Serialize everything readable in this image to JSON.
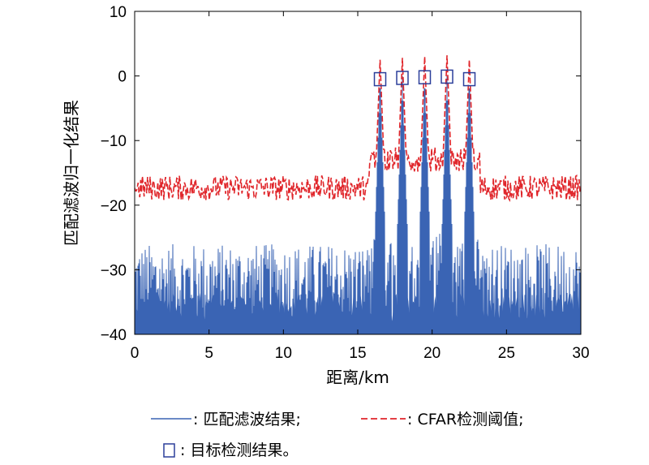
{
  "chart_data": {
    "type": "line",
    "xlabel": "距离/km",
    "ylabel": "匹配滤波归一化结果",
    "xlim": [
      0,
      30
    ],
    "ylim": [
      -40,
      10
    ],
    "xticks": [
      0,
      5,
      10,
      15,
      20,
      25,
      30
    ],
    "yticks": [
      10,
      0,
      -10,
      -20,
      -30,
      -40
    ],
    "xtick_labels": [
      "0",
      "5",
      "10",
      "15",
      "20",
      "25",
      "30"
    ],
    "ytick_labels": [
      "10",
      "0",
      "−10",
      "−20",
      "−30",
      "−40"
    ],
    "grid": false,
    "legend_position": "bottom",
    "series": [
      {
        "name": "匹配滤波结果;",
        "style": "solid",
        "color": "#3a64b4",
        "noise_floor_band": [
          -40,
          -26
        ],
        "peaks": [
          {
            "x": 16.5,
            "y": 0
          },
          {
            "x": 18.0,
            "y": 0
          },
          {
            "x": 19.5,
            "y": 0
          },
          {
            "x": 21.0,
            "y": 0
          },
          {
            "x": 22.5,
            "y": 0
          }
        ]
      },
      {
        "name": "CFAR检测阈值;",
        "style": "dashed",
        "color": "#e0262b",
        "baseline_band": [
          -21,
          -14
        ],
        "peaks": [
          {
            "x": 16.5,
            "y": 2.5
          },
          {
            "x": 18.0,
            "y": 2.8
          },
          {
            "x": 19.5,
            "y": 3.0
          },
          {
            "x": 21.0,
            "y": 3.2
          },
          {
            "x": 22.5,
            "y": 2.5
          }
        ]
      },
      {
        "name": "目标检测结果。",
        "style": "marker-square",
        "color": "#2b3f9a",
        "points": [
          {
            "x": 16.5,
            "y": -0.5
          },
          {
            "x": 18.0,
            "y": -0.3
          },
          {
            "x": 19.5,
            "y": -0.2
          },
          {
            "x": 21.0,
            "y": -0.1
          },
          {
            "x": 22.5,
            "y": -0.5
          }
        ]
      }
    ],
    "legend": {
      "matched_filter_label": ": 匹配滤波结果;",
      "cfar_label": ": CFAR检测阈值;",
      "target_label": ": 目标检测结果。"
    }
  }
}
